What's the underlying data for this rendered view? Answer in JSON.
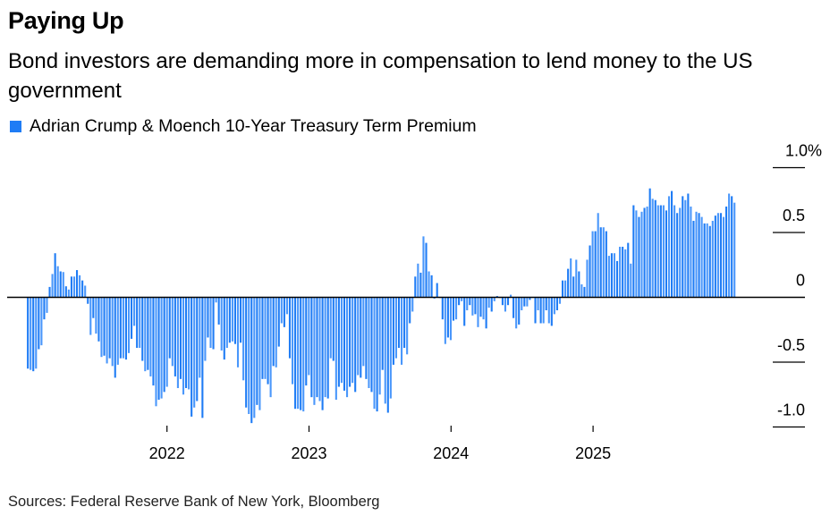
{
  "header": {
    "title": "Paying Up",
    "subtitle": "Bond investors are demanding more in compensation to lend money to the US government"
  },
  "footer": {
    "source": "Sources: Federal Reserve Bank of New York, Bloomberg"
  },
  "colors": {
    "bar": "#1f7cf5",
    "axis": "#000000"
  },
  "chart_data": {
    "type": "bar",
    "title": "Paying Up",
    "legend": [
      {
        "label": "Adrian Crump & Moench 10-Year Treasury Term Premium",
        "color": "#1f7cf5"
      }
    ],
    "legend_placement": "top-left",
    "xlabel": "",
    "ylabel": "",
    "frequency": "weekly",
    "x_start_year": 2021.02,
    "x_step_years": 0.01921,
    "xlim": [
      2021.0,
      2026.0
    ],
    "ylim": [
      -1.0,
      1.0
    ],
    "y_ticks": [
      {
        "value": 1.0,
        "label": "1.0%"
      },
      {
        "value": 0.5,
        "label": "0.5"
      },
      {
        "value": 0,
        "label": "0"
      },
      {
        "value": -0.5,
        "label": "-0.5"
      },
      {
        "value": -1.0,
        "label": "-1.0"
      }
    ],
    "x_ticks": [
      {
        "value": 2022,
        "label": "2022"
      },
      {
        "value": 2023,
        "label": "2023"
      },
      {
        "value": 2024,
        "label": "2024"
      },
      {
        "value": 2025,
        "label": "2025"
      }
    ],
    "values": [
      -0.55,
      -0.56,
      -0.57,
      -0.55,
      -0.4,
      -0.37,
      -0.17,
      -0.12,
      0.08,
      0.18,
      0.34,
      0.24,
      0.2,
      0.195,
      0.085,
      0.06,
      0.16,
      0.16,
      0.21,
      0.17,
      0.13,
      0.09,
      -0.05,
      -0.29,
      -0.16,
      -0.28,
      -0.34,
      -0.46,
      -0.45,
      -0.51,
      -0.47,
      -0.53,
      -0.62,
      -0.52,
      -0.47,
      -0.47,
      -0.48,
      -0.43,
      -0.32,
      -0.22,
      -0.39,
      -0.39,
      -0.49,
      -0.57,
      -0.56,
      -0.61,
      -0.68,
      -0.84,
      -0.79,
      -0.78,
      -0.73,
      -0.69,
      -0.47,
      -0.53,
      -0.61,
      -0.7,
      -0.63,
      -0.75,
      -0.7,
      -0.71,
      -0.92,
      -0.85,
      -0.8,
      -0.62,
      -0.93,
      -0.49,
      -0.31,
      -0.39,
      -0.4,
      -0.04,
      -0.21,
      -0.41,
      -0.48,
      -0.39,
      -0.35,
      -0.34,
      -0.36,
      -0.54,
      -0.35,
      -0.64,
      -0.85,
      -0.9,
      -0.97,
      -0.93,
      -0.83,
      -0.87,
      -0.63,
      -0.63,
      -0.67,
      -0.77,
      -0.53,
      -0.54,
      -0.38,
      -0.2,
      -0.23,
      -0.13,
      -0.47,
      -0.67,
      -0.86,
      -0.86,
      -0.87,
      -0.88,
      -0.68,
      -0.6,
      -0.77,
      -0.83,
      -0.77,
      -0.8,
      -0.87,
      -0.77,
      -0.78,
      -0.47,
      -0.49,
      -0.79,
      -0.69,
      -0.66,
      -0.72,
      -0.77,
      -0.69,
      -0.66,
      -0.73,
      -0.6,
      -0.62,
      -0.53,
      -0.63,
      -0.7,
      -0.73,
      -0.86,
      -0.88,
      -0.75,
      -0.56,
      -0.82,
      -0.89,
      -0.78,
      -0.52,
      -0.47,
      -0.39,
      -0.52,
      -0.39,
      -0.44,
      -0.2,
      -0.11,
      0.16,
      0.26,
      0.19,
      0.47,
      0.42,
      0.2,
      0.17,
      -0.01,
      0.11,
      0,
      -0.17,
      -0.36,
      -0.31,
      -0.33,
      -0.18,
      -0.17,
      -0.06,
      -0.03,
      -0.22,
      -0.1,
      -0.06,
      -0.14,
      -0.13,
      -0.23,
      -0.15,
      -0.17,
      -0.24,
      -0.08,
      -0.11,
      -0.03,
      0.01,
      0,
      -0.06,
      -0.11,
      -0.06,
      0.02,
      -0.16,
      -0.24,
      -0.21,
      -0.1,
      -0.07,
      -0.07,
      -0.02,
      0,
      -0.2,
      -0.1,
      -0.2,
      -0.2,
      -0.1,
      -0.2,
      -0.22,
      -0.13,
      -0.1,
      -0.05,
      0.13,
      0.13,
      0.22,
      0.3,
      0.16,
      0.29,
      0.2,
      0.1,
      0.08,
      0.29,
      0.4,
      0.51,
      0.51,
      0.65,
      0.54,
      0.54,
      0.51,
      0.32,
      0.34,
      0.34,
      0.28,
      0.39,
      0.39,
      0.37,
      0.42,
      0.26,
      0.71,
      0.67,
      0.62,
      0.66,
      0.69,
      0.7,
      0.84,
      0.76,
      0.75,
      0.71,
      0.71,
      0.71,
      0.67,
      0.78,
      0.82,
      0.71,
      0.65,
      0.69,
      0.78,
      0.75,
      0.8,
      0.7,
      0.59,
      0.66,
      0.65,
      0.62,
      0.57,
      0.57,
      0.55,
      0.59,
      0.63,
      0.65,
      0.65,
      0.62,
      0.7,
      0.8,
      0.78,
      0.73
    ]
  }
}
